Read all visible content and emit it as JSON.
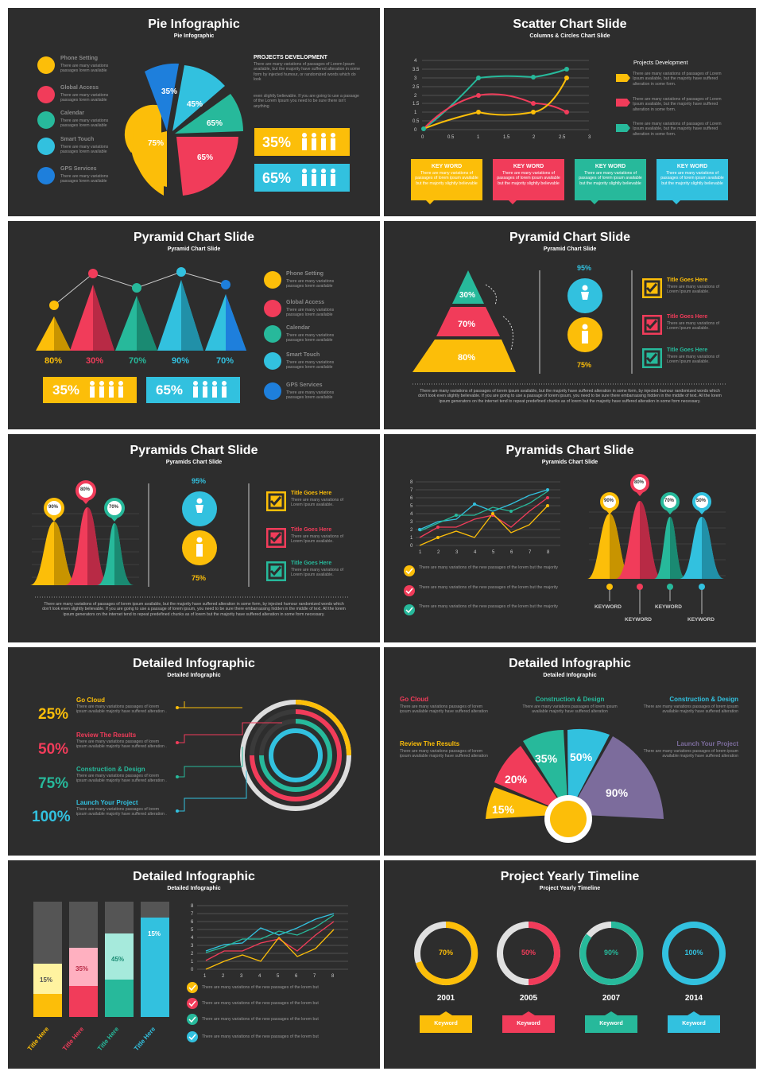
{
  "colors": {
    "yellow": "#fcbe09",
    "red": "#f13c5a",
    "green": "#27b99b",
    "cyan": "#32c1df",
    "purple": "#7c6c9c",
    "bg": "#2d2d2d"
  },
  "lorem_short": "There are many variations passages lorem available",
  "s1": {
    "title": "Pie Infographic",
    "subtitle": "Pie Infographic",
    "items": [
      "Phone Setting",
      "Global Access",
      "Calendar",
      "Smart Touch",
      "GPS Services"
    ],
    "pie": [
      "35%",
      "45%",
      "65%",
      "65%",
      "75%"
    ],
    "proj_title": "PROJECTS DEVELOPMENT",
    "proj_text1": "There are many variations of passages of Lorem Ipsum available, but the majority have suffered alteration in some form by injected humour, or randomized words which do look",
    "proj_text2": "even slightly believable. If you are going to use a passage of the Lorem Ipsum you need to be sure there isn't anything",
    "stat1": "35%",
    "stat2": "65%"
  },
  "s2": {
    "title": "Scatter Chart Slide",
    "subtitle": "Columns & Circles Chart Slide",
    "legend_title": "Projects Development",
    "legend_text": "There are many variations of passages of Lorem Ipsum available, but the majority have suffered alteration in some form.",
    "kw": "KEY WORD",
    "kw_text": "There are many variations of passages of lorem ipsum available but the majority slightly believable"
  },
  "s3": {
    "title": "Pyramid Chart Slide",
    "subtitle": "Pyramid Chart Slide",
    "pct": [
      "80%",
      "30%",
      "70%",
      "90%",
      "70%"
    ],
    "items": [
      "Phone Setting",
      "Global Access",
      "Calendar",
      "Smart Touch",
      "GPS Services"
    ],
    "stat1": "35%",
    "stat2": "65%"
  },
  "s4": {
    "title": "Pyramid Chart Slide",
    "subtitle": "Pyramid Chart Slide",
    "levels": [
      "30%",
      "70%",
      "80%"
    ],
    "top": "95%",
    "bottom": "75%",
    "goal": "Title Goes Here",
    "goal_text": "There are many variations of Lorem Ipsum available.",
    "para": "There are many variations of passages of lorem ipsum available, but the majority have suffered alteration in some form, by injected humour randomized words which don't look even slightly believable. If you are going to use a passage of lorem ipsum, you need to be sure there embarrassing hidden in the middle of text. All the lorem ipsum generators on the internet tend to repeat predefined chunks as of lorem but the majority have suffered alteration in some form necessary."
  },
  "s5": {
    "title": "Pyramids Chart Slide",
    "subtitle": "Pyramids Chart Slide",
    "pins": [
      "90%",
      "80%",
      "70%"
    ],
    "top": "95%",
    "bottom": "75%",
    "goal": "Title Goes Here",
    "goal_text": "There are many variations of Lorem Ipsum available."
  },
  "s6": {
    "title": "Pyramids Chart Slide",
    "subtitle": "Pyramids Chart Slide",
    "check_text": "There are many variations of the new passages of the lorem but the majority",
    "pins": [
      "90%",
      "80%",
      "70%",
      "50%"
    ],
    "kw": "KEYWORD"
  },
  "s7": {
    "title": "Detailed Infographic",
    "subtitle": "Detailed Infographic",
    "rows": [
      {
        "pct": "25%",
        "title": "Go Cloud"
      },
      {
        "pct": "50%",
        "title": "Review The Results"
      },
      {
        "pct": "75%",
        "title": "Construction & Design"
      },
      {
        "pct": "100%",
        "title": "Launch Your Project"
      }
    ],
    "row_text": "There are many variations passages of lorem ipsum available majority have suffered alteration ."
  },
  "s8": {
    "title": "Detailed Infographic",
    "subtitle": "Detailed Infographic",
    "labels": [
      "Go Cloud",
      "Construction & Design",
      "Construction & Design",
      "Review The Results",
      "Launch Your Project"
    ],
    "label_text": "There are many variations passages of lorem ipsum available majority have suffered alteration",
    "fan": [
      "15%",
      "20%",
      "35%",
      "50%",
      "90%"
    ]
  },
  "s9": {
    "title": "Detailed Infographic",
    "subtitle": "Detailed Infographic",
    "bars": [
      "15%",
      "35%",
      "45%",
      "15%"
    ],
    "bar_titles": [
      "Title Here",
      "Title Here",
      "Title Here",
      "Title Here"
    ],
    "check_text": "There are many variations of the new passages of the lorem but"
  },
  "s10": {
    "title": "Project Yearly Timeline",
    "subtitle": "Project Yearly Timeline",
    "rings": [
      {
        "pct": "70%",
        "year": "2001"
      },
      {
        "pct": "50%",
        "year": "2005"
      },
      {
        "pct": "90%",
        "year": "2007"
      },
      {
        "pct": "100%",
        "year": "2014"
      }
    ],
    "kw": "Keyword"
  }
}
